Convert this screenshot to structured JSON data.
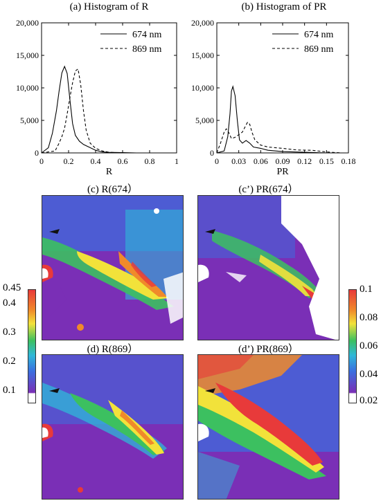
{
  "chart_data": [
    {
      "id": "hist_r",
      "type": "line",
      "title": "(a) Histogram of R",
      "xlabel": "R",
      "ylabel": "",
      "xlim": [
        0,
        1
      ],
      "ylim": [
        0,
        20000
      ],
      "xticks": [
        "0",
        "0.2",
        "0.4",
        "0.6",
        "0.8",
        "1"
      ],
      "yticks": [
        "0",
        "5,000",
        "10,000",
        "15,000",
        "20,000"
      ],
      "legend_position": "top-right",
      "series": [
        {
          "name": "674 nm",
          "style": "solid",
          "x": [
            0.0,
            0.05,
            0.08,
            0.11,
            0.13,
            0.15,
            0.17,
            0.19,
            0.21,
            0.23,
            0.25,
            0.28,
            0.31,
            0.35,
            0.4,
            0.45,
            0.5,
            0.6,
            0.7
          ],
          "y": [
            0,
            800,
            3000,
            6500,
            9500,
            12300,
            13300,
            12200,
            8200,
            4500,
            2700,
            1800,
            1300,
            900,
            400,
            150,
            80,
            40,
            0
          ]
        },
        {
          "name": "869 nm",
          "style": "dashed",
          "x": [
            0.0,
            0.1,
            0.13,
            0.15,
            0.17,
            0.19,
            0.21,
            0.23,
            0.25,
            0.27,
            0.29,
            0.31,
            0.33,
            0.36,
            0.4,
            0.45,
            0.5,
            0.6
          ],
          "y": [
            0,
            300,
            1500,
            2500,
            3800,
            6000,
            8500,
            10800,
            12600,
            12900,
            10500,
            6500,
            3500,
            1500,
            700,
            300,
            100,
            0
          ]
        }
      ]
    },
    {
      "id": "hist_pr",
      "type": "line",
      "title": "(b) Histogram of PR",
      "xlabel": "PR",
      "ylabel": "",
      "xlim": [
        0,
        0.18
      ],
      "ylim": [
        0,
        20000
      ],
      "xticks": [
        "0",
        "0.03",
        "0.06",
        "0.09",
        "0.12",
        "0.15",
        "0.18"
      ],
      "yticks": [
        "0",
        "5,000",
        "10,000",
        "15,000",
        "20,000"
      ],
      "legend_position": "top-right",
      "series": [
        {
          "name": "674 nm",
          "style": "solid",
          "x": [
            0.0,
            0.01,
            0.015,
            0.018,
            0.02,
            0.022,
            0.025,
            0.028,
            0.031,
            0.035,
            0.04,
            0.045,
            0.05,
            0.06,
            0.07,
            0.09,
            0.12,
            0.15
          ],
          "y": [
            0,
            300,
            2500,
            6000,
            9500,
            10200,
            8800,
            5000,
            2000,
            1500,
            1900,
            1500,
            900,
            700,
            400,
            200,
            100,
            0
          ]
        },
        {
          "name": "869 nm",
          "style": "dashed",
          "x": [
            0.0,
            0.005,
            0.01,
            0.013,
            0.017,
            0.02,
            0.025,
            0.03,
            0.035,
            0.04,
            0.042,
            0.045,
            0.048,
            0.052,
            0.06,
            0.07,
            0.09,
            0.11,
            0.13,
            0.15,
            0.17
          ],
          "y": [
            0,
            1500,
            3200,
            3700,
            3000,
            2200,
            2400,
            2800,
            3200,
            4300,
            4700,
            4400,
            3200,
            2000,
            1200,
            900,
            700,
            450,
            400,
            150,
            0
          ]
        }
      ]
    },
    {
      "id": "map_r674",
      "type": "heatmap",
      "title": "(c) R(674）",
      "colorbar": {
        "min": 0.1,
        "max": 0.45,
        "ticks": [
          "0.1",
          "0.2",
          "0.3",
          "0.4",
          "0.45"
        ]
      }
    },
    {
      "id": "map_pr674",
      "type": "heatmap",
      "title": "(c’) PR(674）",
      "colorbar": {
        "min": 0.02,
        "max": 0.1,
        "ticks": [
          "0.02",
          "0.04",
          "0.06",
          "0.08",
          "0.1"
        ]
      }
    },
    {
      "id": "map_r869",
      "type": "heatmap",
      "title": "(d) R(869）",
      "colorbar": {
        "min": 0.1,
        "max": 0.45,
        "ticks": [
          "0.1",
          "0.2",
          "0.3",
          "0.4",
          "0.45"
        ]
      }
    },
    {
      "id": "map_pr869",
      "type": "heatmap",
      "title": "(d’) PR(869）",
      "colorbar": {
        "min": 0.02,
        "max": 0.1,
        "ticks": [
          "0.02",
          "0.04",
          "0.06",
          "0.08",
          "0.1"
        ]
      }
    }
  ],
  "colorbar_left": {
    "ticks": [
      "0.45",
      "0.4",
      "0.3",
      "0.2",
      "0.1"
    ]
  },
  "colorbar_right": {
    "ticks": [
      "0.1",
      "0.08",
      "0.06",
      "0.04",
      "0.02"
    ]
  },
  "colors": {
    "purple": "#7a2fb6",
    "blue": "#3a6fe0",
    "cyan": "#2fb8d8",
    "green": "#3cc060",
    "yellow": "#f2e23a",
    "orange": "#f08a2a",
    "red": "#e83a3a"
  }
}
